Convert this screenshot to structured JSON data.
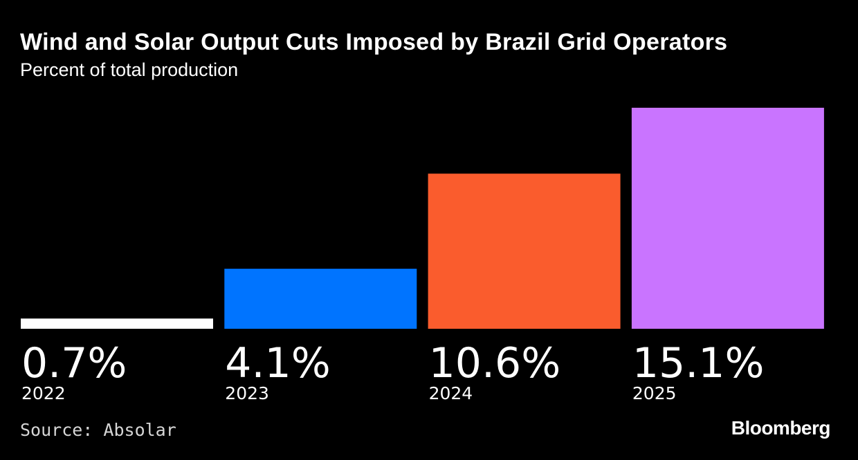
{
  "header": {
    "title": "Wind and Solar Output Cuts Imposed by Brazil Grid Operators",
    "subtitle": "Percent of total production"
  },
  "chart_data": {
    "type": "bar",
    "title": "Wind and Solar Output Cuts Imposed by Brazil Grid Operators",
    "subtitle": "Percent of total production",
    "categories": [
      "2022",
      "2023",
      "2024",
      "2025"
    ],
    "values": [
      0.7,
      4.1,
      10.6,
      15.1
    ],
    "value_labels": [
      "0.7%",
      "4.1%",
      "10.6%",
      "15.1%"
    ],
    "colors": [
      "#ffffff",
      "#0074ff",
      "#fa5c2d",
      "#c974ff"
    ],
    "xlabel": "",
    "ylabel": "",
    "ylim": [
      0,
      15.1
    ],
    "grid": false
  },
  "footer": {
    "source": "Source: Absolar",
    "brand": "Bloomberg"
  }
}
